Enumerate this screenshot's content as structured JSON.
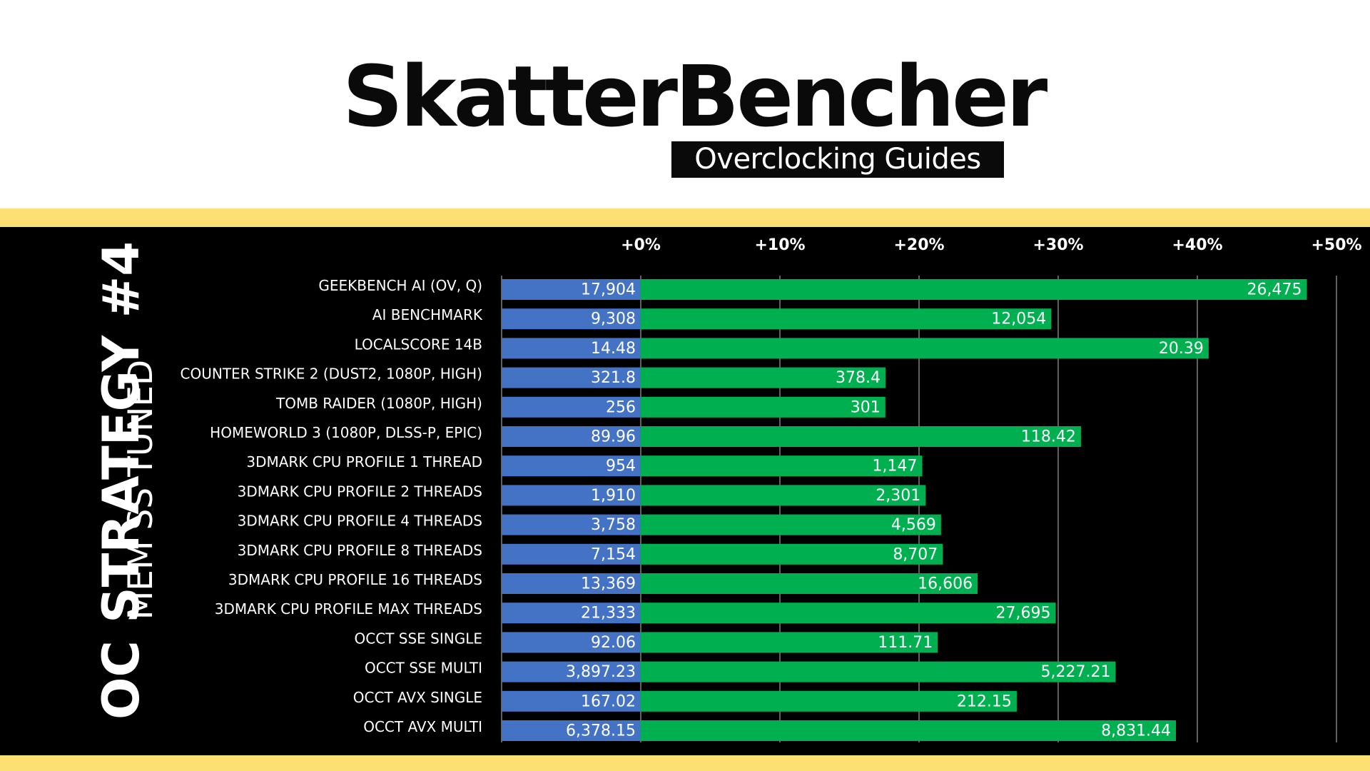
{
  "logo": {
    "title": "SkatterBencher",
    "subtitle": "Overclocking Guides"
  },
  "strategy": {
    "title": "OC STRATEGY #4",
    "subtitle": "MEM SS TUNED"
  },
  "colors": {
    "band": "#fde074",
    "baseline_bar": "#4472c4",
    "overclock_bar": "#00b050",
    "background": "#000000"
  },
  "chart_data": {
    "type": "bar",
    "orientation": "horizontal",
    "xaxis_tick_labels": [
      "+0%",
      "+10%",
      "+20%",
      "+30%",
      "+40%",
      "+50%"
    ],
    "xlim": [
      -10,
      50
    ],
    "grid": true,
    "categories": [
      "GEEKBENCH AI (OV, Q)",
      "AI BENCHMARK",
      "LOCALSCORE 14B",
      "COUNTER STRIKE 2 (DUST2, 1080P, HIGH)",
      "TOMB RAIDER (1080P, HIGH)",
      "HOMEWORLD 3 (1080P, DLSS-P, EPIC)",
      "3DMARK CPU PROFILE 1 THREAD",
      "3DMARK CPU PROFILE 2 THREADS",
      "3DMARK CPU PROFILE 4 THREADS",
      "3DMARK CPU PROFILE 8 THREADS",
      "3DMARK CPU PROFILE 16 THREADS",
      "3DMARK CPU PROFILE MAX THREADS",
      "OCCT SSE SINGLE",
      "OCCT SSE MULTI",
      "OCCT AVX SINGLE",
      "OCCT AVX MULTI"
    ],
    "series": [
      {
        "color": "#4472c4",
        "values": [
          17904,
          9308,
          14.48,
          321.8,
          256,
          89.96,
          954,
          1910,
          3758,
          7154,
          13369,
          21333,
          92.06,
          3897.23,
          167.02,
          6378.15
        ],
        "labels": [
          "17,904",
          "9,308",
          "14.48",
          "321.8",
          "256",
          "89.96",
          "954",
          "1,910",
          "3,758",
          "7,154",
          "13,369",
          "21,333",
          "92.06",
          "3,897.23",
          "167.02",
          "6,378.15"
        ]
      },
      {
        "color": "#00b050",
        "values": [
          26475,
          12054,
          20.39,
          378.4,
          301,
          118.42,
          1147,
          2301,
          4569,
          8707,
          16606,
          27695,
          111.71,
          5227.21,
          212.15,
          8831.44
        ],
        "labels": [
          "26,475",
          "12,054",
          "20.39",
          "378.4",
          "301",
          "118.42",
          "1,147",
          "2,301",
          "4,569",
          "8,707",
          "16,606",
          "27,695",
          "111.71",
          "5,227.21",
          "212.15",
          "8,831.44"
        ]
      }
    ]
  }
}
